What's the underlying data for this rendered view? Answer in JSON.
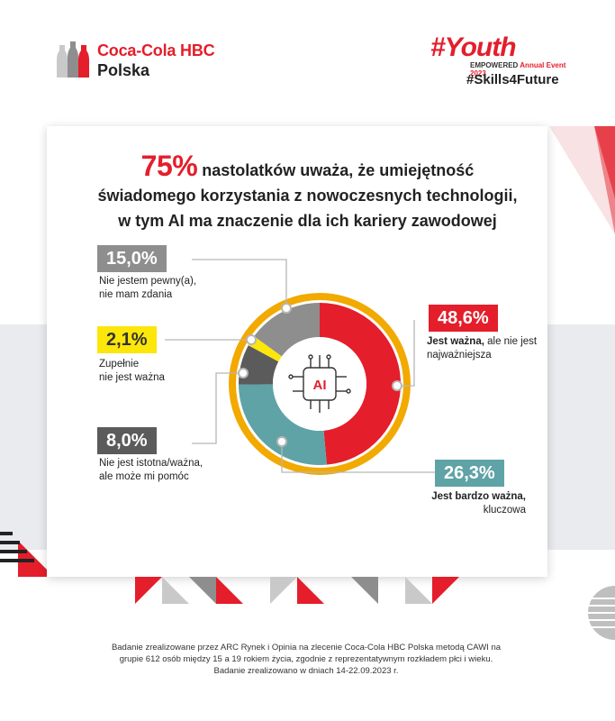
{
  "brand": {
    "name": "Coca-Cola HBC",
    "country": "Polska"
  },
  "event": {
    "title": "#Youth",
    "subtitle_bold": "EMPOWERED",
    "subtitle_rest": "Annual Event 2023",
    "hashtag": "#Skills4Future"
  },
  "headline": {
    "percent": "75%",
    "line1": "nastolatków uważa, że umiejętność",
    "line2": "świadomego korzystania z nowoczesnych technologii,",
    "line3": "w tym AI ma znaczenie dla ich kariery zawodowej"
  },
  "center_icon": {
    "label": "AI",
    "icon": "ai-chip-icon"
  },
  "colors": {
    "red": "#e41e2b",
    "teal": "#5fa3a6",
    "dark": "#5b5b5b",
    "yellow": "#fde60a",
    "gray": "#8e8e8e",
    "ring": "#f2a900"
  },
  "chart_data": {
    "type": "pie",
    "title": "75% nastolatków uważa, że umiejętność świadomego korzystania z nowoczesnych technologii, w tym AI ma znaczenie dla ich kariery zawodowej",
    "unit": "%",
    "slices": [
      {
        "key": "important",
        "value": 48.6,
        "value_label": "48,6%",
        "label_bold": "Jest ważna,",
        "label_rest": "ale nie jest najważniejsza",
        "color": "#e41e2b"
      },
      {
        "key": "very_important",
        "value": 26.3,
        "value_label": "26,3%",
        "label_bold": "Jest bardzo ważna,",
        "label_rest": "kluczowa",
        "color": "#5fa3a6"
      },
      {
        "key": "not_essential",
        "value": 8.0,
        "value_label": "8,0%",
        "label_line1": "Nie jest istotna/ważna,",
        "label_line2": "ale może mi pomóc",
        "color": "#5b5b5b"
      },
      {
        "key": "not_important",
        "value": 2.1,
        "value_label": "2,1%",
        "label_line1": "Zupełnie",
        "label_line2": "nie jest ważna",
        "color": "#fde60a"
      },
      {
        "key": "unsure",
        "value": 15.0,
        "value_label": "15,0%",
        "label_line1": "Nie jestem pewny(a),",
        "label_line2": "nie mam zdania",
        "color": "#8e8e8e"
      }
    ]
  },
  "footer": {
    "line1": "Badanie zrealizowane przez ARC Rynek i Opinia na zlecenie Coca-Cola HBC Polska metodą CAWI na",
    "line2": "grupie 612 osób między 15 a 19 rokiem życia, zgodnie z reprezentatywnym rozkładem płci i wieku.",
    "line3": "Badanie zrealizowano w dniach 14-22.09.2023 r."
  }
}
